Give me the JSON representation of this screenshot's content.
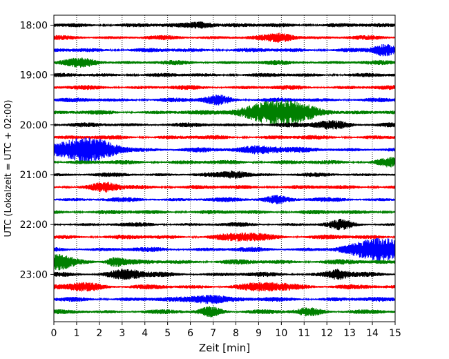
{
  "chart_data": {
    "type": "seismogram-helicorder",
    "xlabel": "Zeit  [min]",
    "ylabel": "UTC (Lokalzeit = UTC + 02:00)",
    "xlim": [
      0,
      15
    ],
    "x_ticks": [
      "0",
      "1",
      "2",
      "3",
      "4",
      "5",
      "6",
      "7",
      "8",
      "9",
      "10",
      "11",
      "12",
      "13",
      "14",
      "15"
    ],
    "y_ticks": [
      "18:00",
      "19:00",
      "20:00",
      "21:00",
      "22:00",
      "23:00"
    ],
    "grid": "vertical dotted at each minute",
    "trace_colors": [
      "#000000",
      "#ff0000",
      "#0000ff",
      "#008000"
    ],
    "traces": [
      {
        "start": "18:00",
        "color": "#000000",
        "amp": 0.3,
        "events": [
          {
            "t": 6.5,
            "a": 0.45,
            "w": 0.6
          }
        ]
      },
      {
        "start": "18:15",
        "color": "#ff0000",
        "amp": 0.3,
        "events": [
          {
            "t": 10.0,
            "a": 0.5,
            "w": 0.6
          }
        ]
      },
      {
        "start": "18:30",
        "color": "#0000ff",
        "amp": 0.3,
        "events": [
          {
            "t": 14.5,
            "a": 0.7,
            "w": 0.5
          }
        ]
      },
      {
        "start": "18:45",
        "color": "#008000",
        "amp": 0.3,
        "events": [
          {
            "t": 1.3,
            "a": 0.45,
            "w": 0.7
          }
        ]
      },
      {
        "start": "19:00",
        "color": "#000000",
        "amp": 0.28,
        "events": []
      },
      {
        "start": "19:15",
        "color": "#ff0000",
        "amp": 0.3,
        "events": []
      },
      {
        "start": "19:30",
        "color": "#0000ff",
        "amp": 0.3,
        "events": [
          {
            "t": 7.2,
            "a": 0.55,
            "w": 0.6
          }
        ]
      },
      {
        "start": "19:45",
        "color": "#008000",
        "amp": 0.3,
        "events": [
          {
            "t": 9.9,
            "a": 1.6,
            "w": 1.6
          }
        ]
      },
      {
        "start": "20:00",
        "color": "#000000",
        "amp": 0.3,
        "events": [
          {
            "t": 12.2,
            "a": 0.5,
            "w": 0.8
          }
        ]
      },
      {
        "start": "20:15",
        "color": "#ff0000",
        "amp": 0.3,
        "events": []
      },
      {
        "start": "20:30",
        "color": "#0000ff",
        "amp": 0.32,
        "events": [
          {
            "t": 1.3,
            "a": 1.6,
            "w": 1.4
          },
          {
            "t": 9.2,
            "a": 0.5,
            "w": 1.0
          }
        ]
      },
      {
        "start": "20:45",
        "color": "#008000",
        "amp": 0.3,
        "events": [
          {
            "t": 14.8,
            "a": 0.5,
            "w": 0.6
          }
        ]
      },
      {
        "start": "21:00",
        "color": "#000000",
        "amp": 0.28,
        "events": [
          {
            "t": 8.0,
            "a": 0.45,
            "w": 0.6
          }
        ]
      },
      {
        "start": "21:15",
        "color": "#ff0000",
        "amp": 0.3,
        "events": [
          {
            "t": 2.3,
            "a": 0.55,
            "w": 0.6
          }
        ]
      },
      {
        "start": "21:30",
        "color": "#0000ff",
        "amp": 0.3,
        "events": [
          {
            "t": 9.8,
            "a": 0.45,
            "w": 0.6
          }
        ]
      },
      {
        "start": "21:45",
        "color": "#008000",
        "amp": 0.3,
        "events": []
      },
      {
        "start": "22:00",
        "color": "#000000",
        "amp": 0.28,
        "events": [
          {
            "t": 12.6,
            "a": 0.5,
            "w": 0.5
          }
        ]
      },
      {
        "start": "22:15",
        "color": "#ff0000",
        "amp": 0.32,
        "events": [
          {
            "t": 8.5,
            "a": 0.45,
            "w": 1.0
          }
        ]
      },
      {
        "start": "22:30",
        "color": "#0000ff",
        "amp": 0.32,
        "events": [
          {
            "t": 14.4,
            "a": 1.6,
            "w": 1.2
          }
        ]
      },
      {
        "start": "22:45",
        "color": "#008000",
        "amp": 0.34,
        "events": [
          {
            "t": 0.2,
            "a": 1.0,
            "w": 0.7
          },
          {
            "t": 2.7,
            "a": 0.6,
            "w": 0.4
          }
        ]
      },
      {
        "start": "23:00",
        "color": "#000000",
        "amp": 0.32,
        "events": [
          {
            "t": 3.2,
            "a": 0.6,
            "w": 0.8
          },
          {
            "t": 12.5,
            "a": 0.6,
            "w": 0.5
          }
        ]
      },
      {
        "start": "23:15",
        "color": "#ff0000",
        "amp": 0.32,
        "events": [
          {
            "t": 1.3,
            "a": 0.5,
            "w": 0.8
          },
          {
            "t": 9.6,
            "a": 0.45,
            "w": 1.2
          }
        ]
      },
      {
        "start": "23:30",
        "color": "#0000ff",
        "amp": 0.32,
        "events": [
          {
            "t": 6.8,
            "a": 0.6,
            "w": 0.8
          }
        ]
      },
      {
        "start": "23:45",
        "color": "#008000",
        "amp": 0.3,
        "events": [
          {
            "t": 6.9,
            "a": 0.6,
            "w": 0.5
          },
          {
            "t": 11.2,
            "a": 0.5,
            "w": 0.6
          }
        ]
      }
    ]
  }
}
